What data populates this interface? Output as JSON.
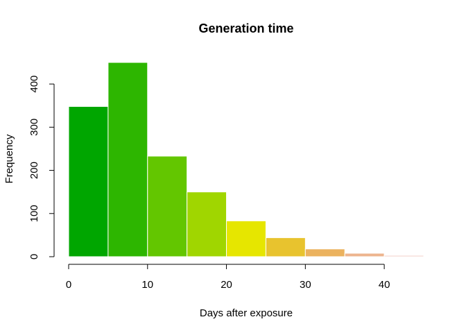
{
  "chart_data": {
    "type": "bar",
    "title": "Generation time",
    "xlabel": "Days after exposure",
    "ylabel": "Frequency",
    "bins": [
      {
        "from": 0,
        "to": 5,
        "value": 348,
        "color": "#00A600"
      },
      {
        "from": 5,
        "to": 10,
        "value": 450,
        "color": "#2DB600"
      },
      {
        "from": 10,
        "to": 15,
        "value": 233,
        "color": "#63C600"
      },
      {
        "from": 15,
        "to": 20,
        "value": 150,
        "color": "#A0D600"
      },
      {
        "from": 20,
        "to": 25,
        "value": 83,
        "color": "#E6E600"
      },
      {
        "from": 25,
        "to": 30,
        "value": 44,
        "color": "#E8C32E"
      },
      {
        "from": 30,
        "to": 35,
        "value": 18,
        "color": "#EBB25E"
      },
      {
        "from": 35,
        "to": 40,
        "value": 8,
        "color": "#EDB48E"
      },
      {
        "from": 40,
        "to": 45,
        "value": 3,
        "color": "#F0C9C0"
      }
    ],
    "xlim": [
      0,
      45
    ],
    "ylim": [
      0,
      450
    ],
    "x_ticks": [
      0,
      10,
      20,
      30,
      40
    ],
    "y_ticks": [
      0,
      100,
      200,
      300,
      400
    ],
    "grid": false
  }
}
